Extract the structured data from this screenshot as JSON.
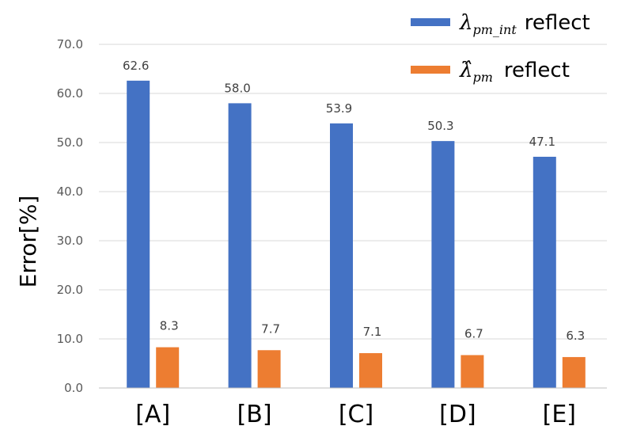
{
  "chart_data": {
    "type": "bar",
    "categories": [
      "[A]",
      "[B]",
      "[C]",
      "[D]",
      "[E]"
    ],
    "series": [
      {
        "name_symbol": "λ",
        "name_subscript": "pm_int",
        "name_suffix": "reflect",
        "color": "#4472C4",
        "values": [
          62.6,
          58.0,
          53.9,
          50.3,
          47.1
        ]
      },
      {
        "name_symbol": "λ̂",
        "name_subscript": "pm",
        "name_suffix": "reflect",
        "color": "#ED7D31",
        "values": [
          8.3,
          7.7,
          7.1,
          6.7,
          6.3
        ]
      }
    ],
    "ylabel": "Error[%]",
    "ylim": [
      0,
      70
    ],
    "yticks": [
      "0.0",
      "10.0",
      "20.0",
      "30.0",
      "40.0",
      "50.0",
      "60.0",
      "70.0"
    ],
    "ytick_values": [
      0,
      10,
      20,
      30,
      40,
      50,
      60,
      70
    ],
    "data_labels": [
      [
        "62.6",
        "58.0",
        "53.9",
        "50.3",
        "47.1"
      ],
      [
        "8.3",
        "7.7",
        "7.1",
        "6.7",
        "6.3"
      ]
    ],
    "grid": true,
    "gridline_color": "#d9d9d9",
    "legend_position": "top-right"
  }
}
